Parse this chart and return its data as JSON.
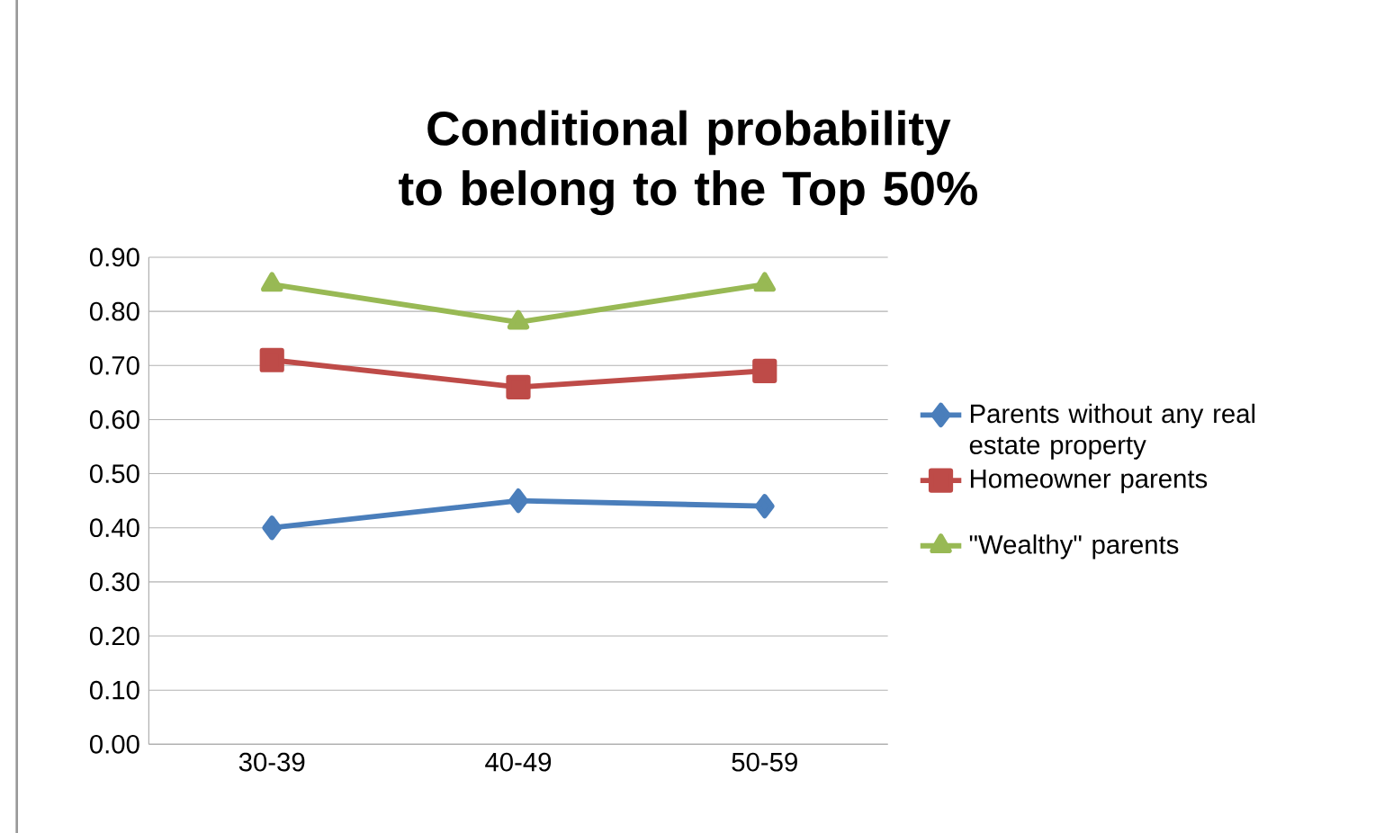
{
  "chart_data": {
    "type": "line",
    "title": "Conditional probability to belong to the Top 50%",
    "categories": [
      "30-39",
      "40-49",
      "50-59"
    ],
    "series": [
      {
        "name": "Parents without any real estate property",
        "color": "#4a7ebb",
        "marker": "diamond",
        "values": [
          0.4,
          0.45,
          0.44
        ]
      },
      {
        "name": "Homeowner parents",
        "color": "#be4b48",
        "marker": "square",
        "values": [
          0.71,
          0.66,
          0.69
        ]
      },
      {
        "name": "\"Wealthy\" parents",
        "color": "#98b954",
        "marker": "triangle",
        "values": [
          0.85,
          0.78,
          0.85
        ]
      }
    ],
    "ylim": [
      0,
      0.9
    ],
    "yticks": [
      {
        "value": 0,
        "label": "0.00"
      },
      {
        "value": 0.1,
        "label": "0.10"
      },
      {
        "value": 0.2,
        "label": "0.20"
      },
      {
        "value": 0.3,
        "label": "0.30"
      },
      {
        "value": 0.4,
        "label": "0.40"
      },
      {
        "value": 0.5,
        "label": "0.50"
      },
      {
        "value": 0.6,
        "label": "0.60"
      },
      {
        "value": 0.7,
        "label": "0.70"
      },
      {
        "value": 0.8,
        "label": "0.80"
      },
      {
        "value": 0.9,
        "label": "0.90"
      }
    ],
    "grid": "y",
    "legend": "right",
    "line_style": "solid"
  }
}
